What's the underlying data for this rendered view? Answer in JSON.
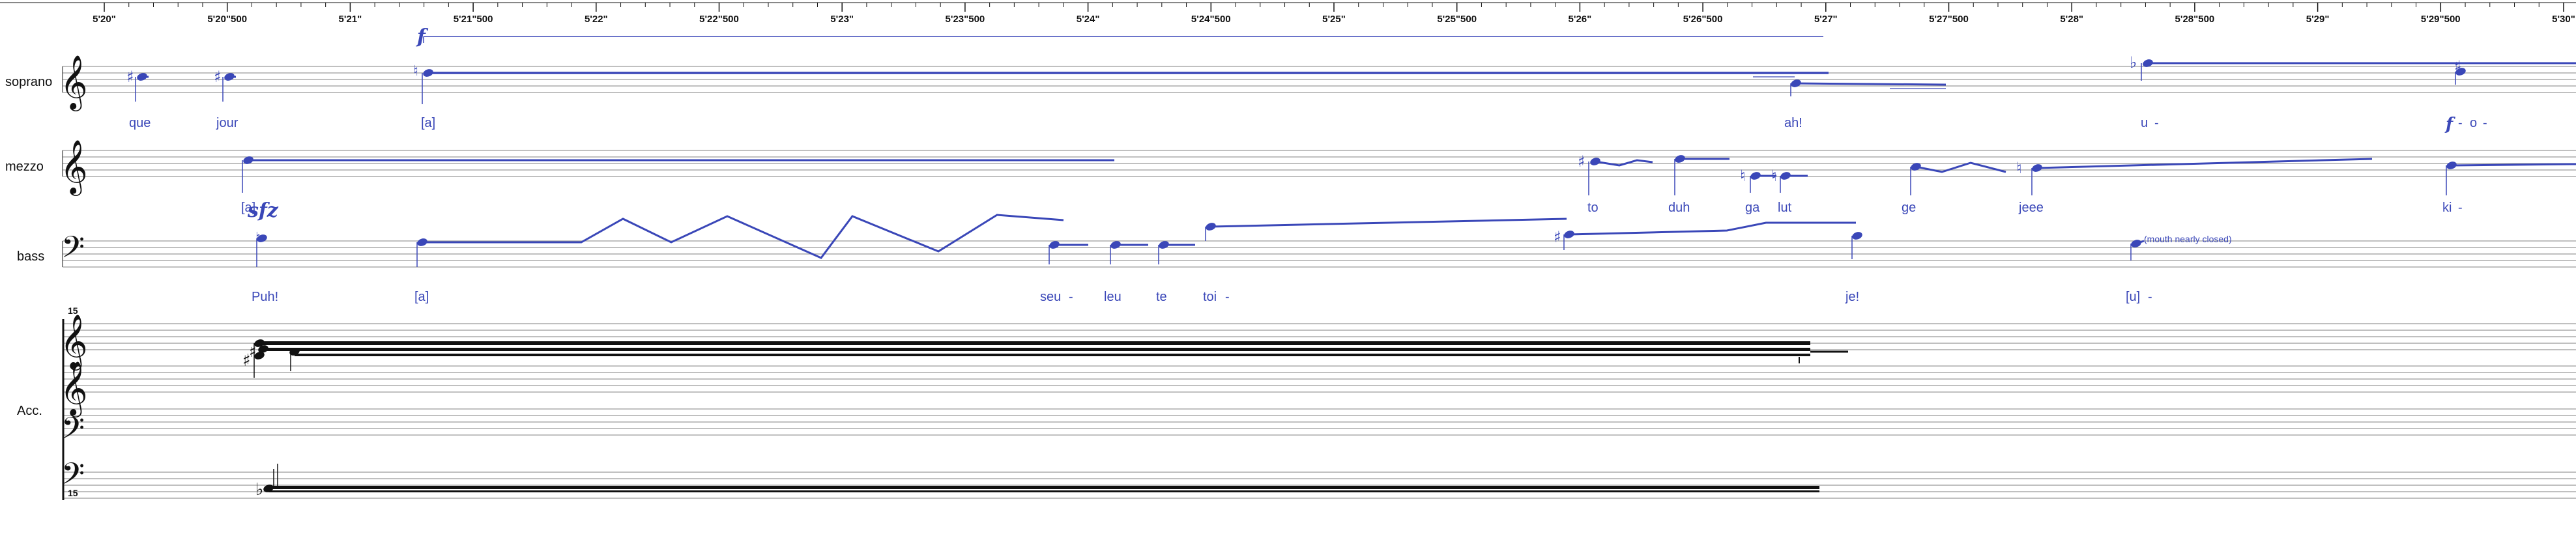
{
  "timeline": {
    "ticks": [
      "5'20\"",
      "5'20\"500",
      "5'21\"",
      "5'21\"500",
      "5'22\"",
      "5'22\"500",
      "5'23\"",
      "5'23\"500",
      "5'24\"",
      "5'24\"500",
      "5'25\"",
      "5'25\"500",
      "5'26\"",
      "5'26\"500",
      "5'27\"",
      "5'27\"500",
      "5'28\"",
      "5'28\"500",
      "5'29\"",
      "5'29\"500",
      "5'30\""
    ]
  },
  "parts": {
    "soprano": {
      "label": "soprano",
      "dynamic": "f",
      "lyrics": [
        "que",
        "jour",
        "[a]",
        "ah!",
        "u",
        "-",
        "o",
        "-"
      ],
      "lyric_dynamic": "f"
    },
    "mezzo": {
      "label": "mezzo",
      "dynamic": "sfz",
      "lyrics": [
        "[a]",
        "to",
        "duh",
        "ga",
        "lut",
        "ge",
        "jeee",
        "ki",
        "-"
      ]
    },
    "bass": {
      "label": "bass",
      "annotation": "(mouth nearly closed)",
      "lyrics": [
        "Puh!",
        "[a]",
        "seu",
        "-",
        "leu",
        "te",
        "toi",
        "-",
        "je!",
        "[u]",
        "-"
      ]
    },
    "acc": {
      "label": "Acc.",
      "octave_top": "15",
      "octave_bottom": "15"
    }
  },
  "colors": {
    "voice": "#3a47b8",
    "ink": "#111111",
    "staff": "#9a9a9a",
    "grid": "#cccccc"
  },
  "icons": {
    "treble_clef": "treble-clef-icon",
    "bass_clef": "bass-clef-icon",
    "sharp": "sharp-icon",
    "flat": "flat-icon",
    "natural": "natural-icon",
    "notehead": "notehead-icon"
  }
}
